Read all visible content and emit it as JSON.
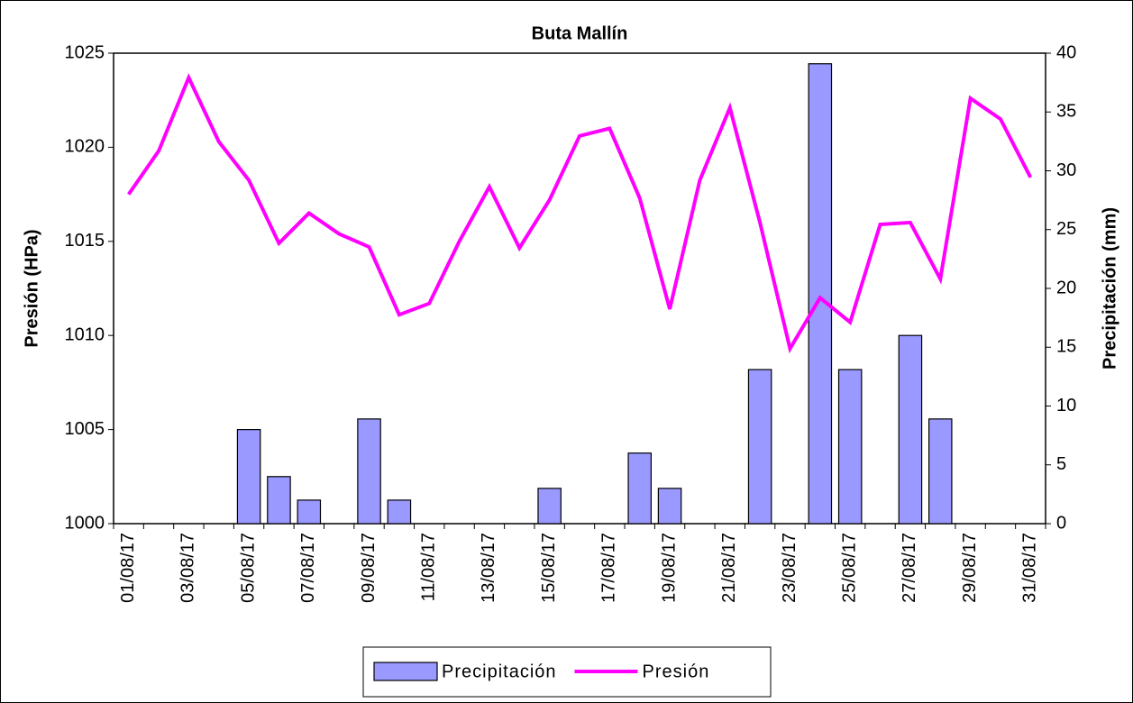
{
  "chart_data": {
    "type": "bar-line",
    "title": "Buta Mallín",
    "categories": [
      "01/08/17",
      null,
      "03/08/17",
      null,
      "05/08/17",
      null,
      "07/08/17",
      null,
      "09/08/17",
      null,
      "11/08/17",
      null,
      "13/08/17",
      null,
      "15/08/17",
      null,
      "17/08/17",
      null,
      "19/08/17",
      null,
      "21/08/17",
      null,
      "23/08/17",
      null,
      "25/08/17",
      null,
      "27/08/17",
      null,
      "29/08/17",
      null,
      "31/08/17"
    ],
    "ylabel": "Presión (HPa)",
    "y2label": "Precipitación (mm)",
    "ylim": [
      1000,
      1025
    ],
    "yticks": [
      1000,
      1005,
      1010,
      1015,
      1020,
      1025
    ],
    "y2lim": [
      0,
      40
    ],
    "y2ticks": [
      0,
      5,
      10,
      15,
      20,
      25,
      30,
      35,
      40
    ],
    "legend": "bottom",
    "series": [
      {
        "name": "Precipitación",
        "type": "bar",
        "axis": "y2",
        "color": "#9999ff",
        "values": [
          0,
          0,
          0,
          0,
          8,
          4,
          2,
          0,
          8.9,
          2,
          0,
          0,
          0,
          0,
          3,
          0,
          0,
          6,
          3,
          0,
          0,
          13.1,
          0,
          39.1,
          13.1,
          0,
          16,
          8.9,
          0,
          0,
          0
        ]
      },
      {
        "name": "Presión",
        "type": "line",
        "axis": "y",
        "color": "#ff00ff",
        "values": [
          1017.5,
          1019.8,
          1023.7,
          1020.3,
          1018.25,
          1014.9,
          1016.5,
          1015.4,
          1014.7,
          1011.1,
          1011.7,
          1015.0,
          1017.9,
          1014.65,
          1017.2,
          1020.6,
          1021.0,
          1017.3,
          1011.4,
          1018.25,
          1022.1,
          1016.0,
          1009.3,
          1012.0,
          1010.7,
          1015.9,
          1016.0,
          1013.0,
          1022.6,
          1021.5,
          1018.4
        ]
      }
    ]
  }
}
